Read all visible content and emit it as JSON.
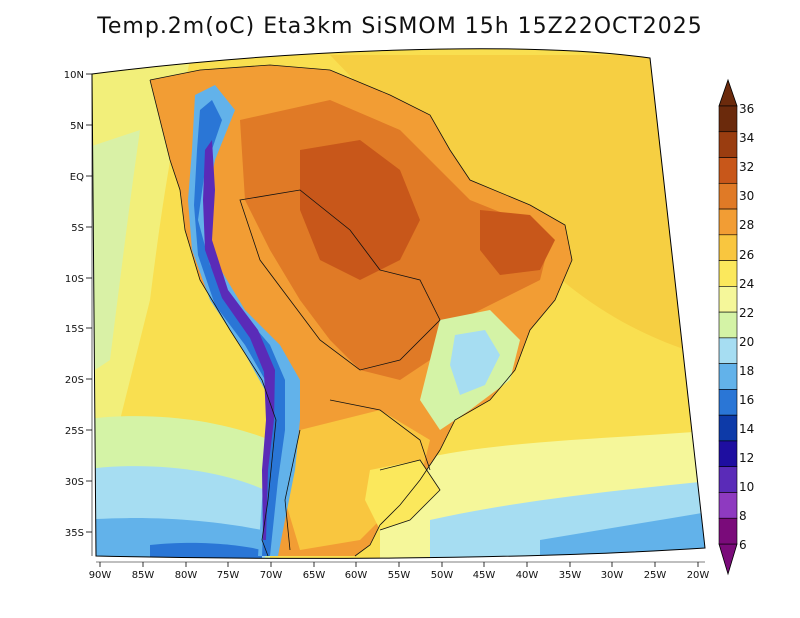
{
  "title": "Temp.2m(oC) Eta3km SiSMOM 15h 15Z22OCT2025",
  "map": {
    "lat_labels": [
      "10N",
      "5N",
      "EQ",
      "5S",
      "10S",
      "15S",
      "20S",
      "25S",
      "30S",
      "35S"
    ],
    "lon_labels": [
      "90W",
      "85W",
      "80W",
      "75W",
      "70W",
      "65W",
      "60W",
      "55W",
      "50W",
      "45W",
      "40W",
      "35W",
      "30W",
      "25W",
      "20W"
    ]
  },
  "colorbar": {
    "labels": [
      "36",
      "34",
      "32",
      "30",
      "28",
      "26",
      "24",
      "22",
      "20",
      "18",
      "16",
      "14",
      "12",
      "10",
      "8",
      "6"
    ],
    "colors": [
      "#6b2a0c",
      "#9a3d10",
      "#c8571a",
      "#e07a26",
      "#f29d34",
      "#f9c63f",
      "#fbe85c",
      "#f5f79a",
      "#d4f3a6",
      "#a6ddf2",
      "#62b2ea",
      "#2a76d6",
      "#0d3aa8",
      "#1e0ea0",
      "#5a2bb8",
      "#8e3ac0",
      "#7a0b7a"
    ]
  }
}
